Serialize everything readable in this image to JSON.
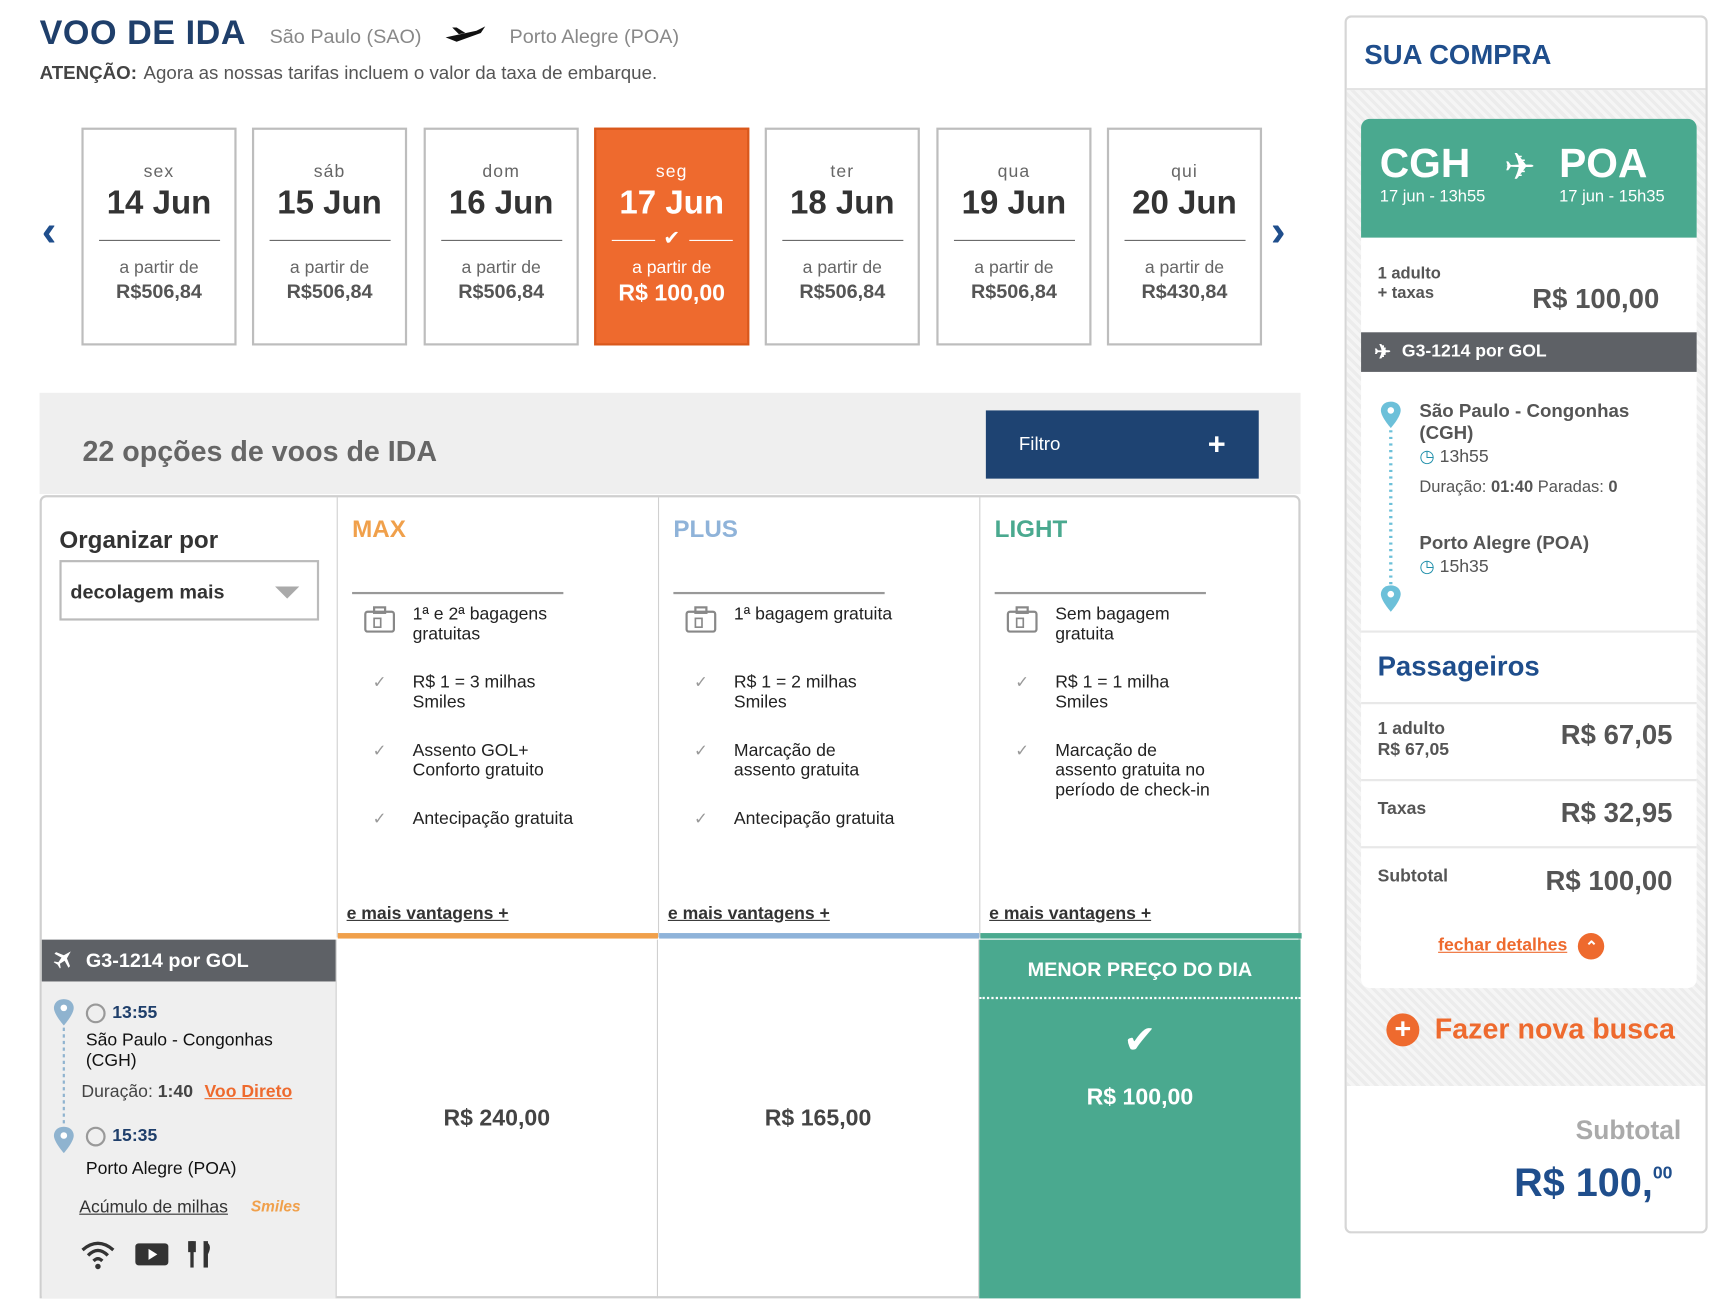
{
  "header": {
    "title": "VOO DE IDA",
    "origin": "São Paulo  (SAO)",
    "destination": "Porto Alegre  (POA)",
    "notice_label": "ATENÇÃO:",
    "notice_text": "Agora as nossas tarifas incluem o valor da taxa de embarque."
  },
  "dates": [
    {
      "weekday": "sex",
      "date": "14 Jun",
      "from_label": "a partir de",
      "price": "R$506,84",
      "selected": false
    },
    {
      "weekday": "sáb",
      "date": "15 Jun",
      "from_label": "a partir de",
      "price": "R$506,84",
      "selected": false
    },
    {
      "weekday": "dom",
      "date": "16 Jun",
      "from_label": "a partir de",
      "price": "R$506,84",
      "selected": false
    },
    {
      "weekday": "seg",
      "date": "17 Jun",
      "from_label": "a partir de",
      "price": "R$ 100,00",
      "selected": true
    },
    {
      "weekday": "ter",
      "date": "18 Jun",
      "from_label": "a partir de",
      "price": "R$506,84",
      "selected": false
    },
    {
      "weekday": "qua",
      "date": "19 Jun",
      "from_label": "a partir de",
      "price": "R$506,84",
      "selected": false
    },
    {
      "weekday": "qui",
      "date": "20 Jun",
      "from_label": "a partir de",
      "price": "R$430,84",
      "selected": false
    }
  ],
  "options": {
    "count_text": "22 opções de voos de IDA",
    "filter_label": "Filtro",
    "filter_icon": "plus-icon"
  },
  "sort": {
    "label": "Organizar por",
    "value": "decolagem mais"
  },
  "fares": [
    {
      "name": "MAX",
      "color": "#f0a04b",
      "features": [
        "1ª e 2ª bagagens gratuitas",
        "R$ 1 = 3 milhas Smiles",
        "Assento GOL+ Conforto gratuito",
        "Antecipação gratuita"
      ],
      "more": "e mais vantagens +"
    },
    {
      "name": "PLUS",
      "color": "#8fb3d9",
      "features": [
        "1ª bagagem gratuita",
        "R$ 1 = 2 milhas Smiles",
        "Marcação de assento gratuita",
        "Antecipação gratuita"
      ],
      "more": "e mais vantagens +"
    },
    {
      "name": "LIGHT",
      "color": "#4aa98f",
      "features": [
        "Sem bagagem gratuita",
        "R$ 1 = 1 milha Smiles",
        "Marcação de assento gratuita no período de check-in"
      ],
      "more": "e mais vantagens +"
    }
  ],
  "flight": {
    "header": "G3-1214 por  GOL",
    "dep_time": "13:55",
    "dep_place": "São Paulo - Congonhas (CGH)",
    "duration_label": "Duração:",
    "duration": "1:40",
    "direct": "Voo Direto",
    "arr_time": "15:35",
    "arr_place": "Porto Alegre (POA)",
    "miles_link": "Acúmulo de milhas",
    "smiles_logo": "Smiles",
    "prices": [
      "R$ 240,00",
      "R$ 165,00",
      "R$ 100,00"
    ],
    "best_label": "MENOR  PREÇO DO DIA"
  },
  "summary": {
    "title": "SUA COMPRA",
    "from_code": "CGH",
    "to_code": "POA",
    "from_time": "17 jun - 13h55",
    "to_time": "17 jun - 15h35",
    "pax_line1": "1 adulto",
    "pax_line2": "+ taxas",
    "total": "R$ 100,00",
    "flight_bar": "G3-1214 por  GOL",
    "dep_place": "São Paulo - Congonhas (CGH)",
    "dep_time": "13h55",
    "duration_label": "Duração:",
    "duration": "01:40",
    "stops_label": "Paradas:",
    "stops": "0",
    "arr_place": "Porto Alegre (POA)",
    "arr_time": "15h35",
    "passengers_title": "Passageiros",
    "adult_label": "1 adulto",
    "adult_sub": "R$ 67,05",
    "adult_price": "R$ 67,05",
    "taxes_label": "Taxas",
    "taxes_price": "R$ 32,95",
    "subtotal_label": "Subtotal",
    "subtotal_price": "R$ 100,00",
    "close_details": "fechar detalhes",
    "new_search": "Fazer nova busca",
    "footer_subtotal_label": "Subtotal",
    "footer_total": "R$ 100,",
    "footer_cents": "00"
  },
  "colors": {
    "brand_blue": "#1f3f6b",
    "orange": "#ee6a2e",
    "green": "#4aa98f",
    "dark_gray": "#5e6166"
  }
}
